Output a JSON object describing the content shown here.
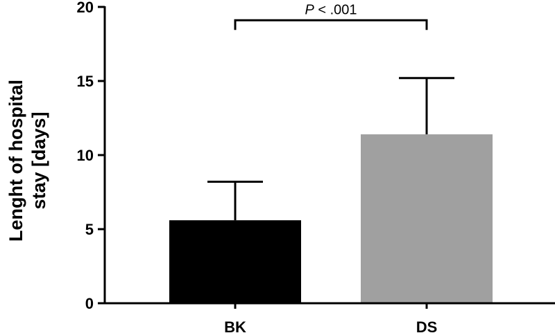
{
  "chart_data": {
    "type": "bar",
    "categories": [
      "BK",
      "DS"
    ],
    "values": [
      5.6,
      11.4
    ],
    "error_upper": [
      8.2,
      15.2
    ],
    "colors": [
      "#000000",
      "#a0a0a0"
    ],
    "ylabel_lines": [
      "Lenght of hospital",
      "stay [days]"
    ],
    "ylim": [
      0,
      20
    ],
    "yticks": [
      0,
      5,
      10,
      15,
      20
    ],
    "significance": {
      "p_letter": "P",
      "rest": " < .001",
      "between": [
        "BK",
        "DS"
      ],
      "level": 19.1
    },
    "grid": false,
    "legend": "none"
  }
}
